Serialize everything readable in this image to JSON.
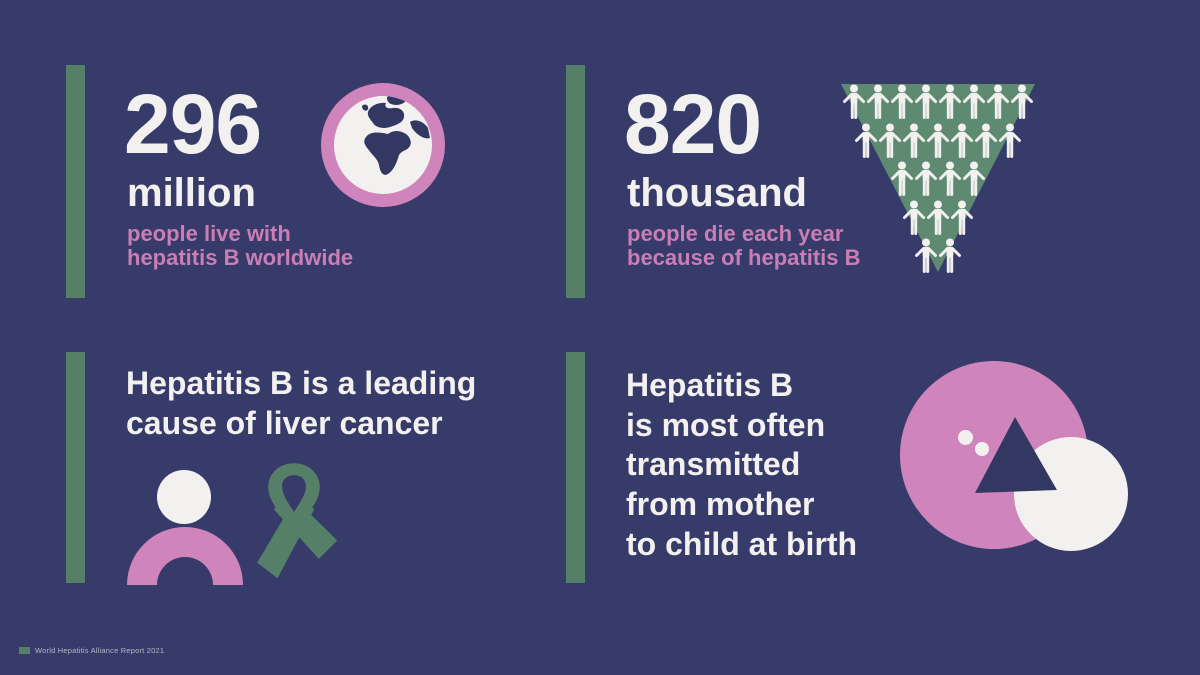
{
  "colors": {
    "background": "#363b6a",
    "navy_shape": "#333863",
    "green": "#567f68",
    "green_light": "#5e8a72",
    "pink": "#cf85bb",
    "pink_text": "#ca7db6",
    "white": "#f3f1ef"
  },
  "stats": [
    {
      "value": "296",
      "unit": "million",
      "description": "people live with\nhepatitis B worldwide",
      "icon": "globe-icon"
    },
    {
      "value": "820",
      "unit": "thousand",
      "description": "people die each year\nbecause of hepatitis B",
      "icon": "people-pyramid-icon",
      "pictograph": {
        "rows": [
          8,
          7,
          4,
          3,
          2
        ],
        "total_people": 24
      }
    }
  ],
  "facts": [
    {
      "text": "Hepatitis B is a leading\ncause of liver cancer",
      "icons": [
        "person-icon",
        "awareness-ribbon-icon"
      ]
    },
    {
      "text": "Hepatitis B\nis most often\ntransmitted\nfrom mother\nto child at birth",
      "icons": [
        "mother-child-abstract-icon"
      ]
    }
  ],
  "footer": {
    "label": "World Hepatitis Alliance Report 2021"
  }
}
